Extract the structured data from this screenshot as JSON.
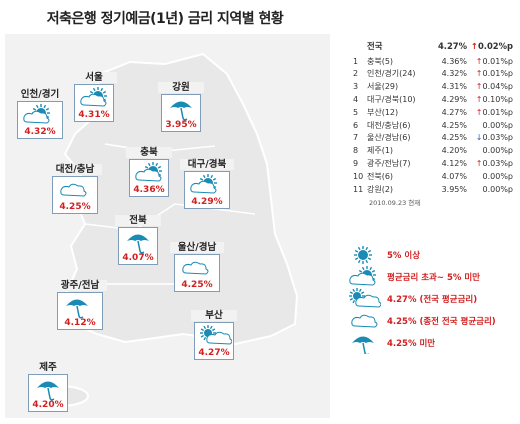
{
  "title": "저축은행 정기예금(1년) 금리 지역별 현황",
  "regions": [
    {
      "id": "seoul",
      "name": "서울",
      "rate": "4.31%",
      "weather": "sun-cloud"
    },
    {
      "id": "incheon",
      "name": "인천/경기",
      "rate": "4.32%",
      "weather": "sun-cloud"
    },
    {
      "id": "gangwon",
      "name": "강원",
      "rate": "3.95%",
      "weather": "umbrella"
    },
    {
      "id": "chungbuk",
      "name": "충북",
      "rate": "4.36%",
      "weather": "sun-cloud"
    },
    {
      "id": "daejeon",
      "name": "대전/충남",
      "rate": "4.25%",
      "weather": "cloud"
    },
    {
      "id": "daegu",
      "name": "대구/경북",
      "rate": "4.29%",
      "weather": "sun-cloud"
    },
    {
      "id": "jeonbuk",
      "name": "전북",
      "rate": "4.07%",
      "weather": "umbrella"
    },
    {
      "id": "ulsan",
      "name": "울산/경남",
      "rate": "4.25%",
      "weather": "cloud"
    },
    {
      "id": "gwangju",
      "name": "광주/전남",
      "rate": "4.12%",
      "weather": "umbrella"
    },
    {
      "id": "busan",
      "name": "부산",
      "rate": "4.27%",
      "weather": "sun-cloud-small"
    },
    {
      "id": "jeju",
      "name": "제주",
      "rate": "4.20%",
      "weather": "umbrella"
    }
  ],
  "table": {
    "national": {
      "name": "전국",
      "rate": "4.27%",
      "change": "0.02%p",
      "dir": "up"
    },
    "rows": [
      {
        "no": "1",
        "name": "충북(5)",
        "rate": "4.36%",
        "change": "0.01%p",
        "dir": "up"
      },
      {
        "no": "2",
        "name": "인천/경기(24)",
        "rate": "4.32%",
        "change": "0.01%p",
        "dir": "up"
      },
      {
        "no": "3",
        "name": "서울(29)",
        "rate": "4.31%",
        "change": "0.04%p",
        "dir": "up"
      },
      {
        "no": "4",
        "name": "대구/경북(10)",
        "rate": "4.29%",
        "change": "0.10%p",
        "dir": "up"
      },
      {
        "no": "5",
        "name": "부산(12)",
        "rate": "4.27%",
        "change": "0.01%p",
        "dir": "up"
      },
      {
        "no": "6",
        "name": "대전/충남(6)",
        "rate": "4.25%",
        "change": "0.00%p",
        "dir": "none"
      },
      {
        "no": "7",
        "name": "울산/경남(6)",
        "rate": "4.25%",
        "change": "0.03%p",
        "dir": "down"
      },
      {
        "no": "8",
        "name": "제주(1)",
        "rate": "4.20%",
        "change": "0.00%p",
        "dir": "none"
      },
      {
        "no": "9",
        "name": "광주/전남(7)",
        "rate": "4.12%",
        "change": "0.03%p",
        "dir": "up"
      },
      {
        "no": "10",
        "name": "전북(6)",
        "rate": "4.07%",
        "change": "0.00%p",
        "dir": "none"
      },
      {
        "no": "11",
        "name": "강원(2)",
        "rate": "3.95%",
        "change": "0.00%p",
        "dir": "none"
      }
    ],
    "date_note": "2010.09.23 현재"
  },
  "legend": [
    {
      "icon": "sun",
      "text": "5% 이상"
    },
    {
      "icon": "sun-cloud",
      "text": "평균금리 초과~ 5% 미만"
    },
    {
      "icon": "sun-cloud-small",
      "text": "4.27% (전국 평균금리)"
    },
    {
      "icon": "cloud",
      "text": "4.25% (종전 전국 평균금리)"
    },
    {
      "icon": "umbrella",
      "text": "4.25% 미만"
    }
  ],
  "colors": {
    "rate_red": "#d21f1f",
    "map_fill": "#f2f2f2",
    "land": "#e6e6e6",
    "icon_blue": "#1a8bb5",
    "down_blue": "#2a5fb4"
  }
}
